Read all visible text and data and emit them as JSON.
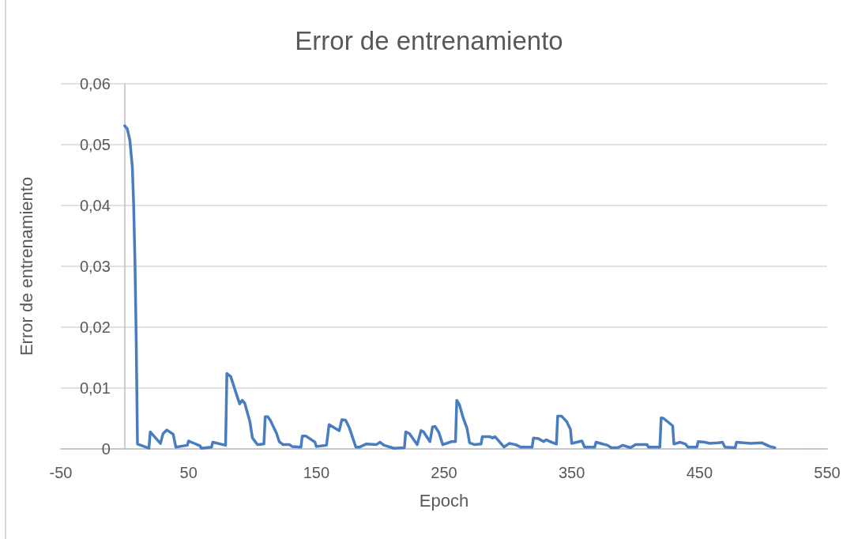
{
  "chart_data": {
    "type": "line",
    "title": "Error de entrenamiento",
    "xlabel": "Epoch",
    "ylabel": "Error de entrenamiento",
    "x": [
      0,
      2,
      4,
      6,
      7,
      8,
      9,
      10,
      19,
      20,
      28,
      30,
      33,
      38,
      40,
      49,
      50,
      59,
      60,
      68,
      69,
      79,
      80,
      83,
      87,
      90,
      92,
      94,
      98,
      100,
      104,
      109,
      110,
      112,
      114,
      119,
      121,
      124,
      129,
      131,
      138,
      139,
      142,
      149,
      150,
      158,
      160,
      168,
      170,
      173,
      176,
      181,
      184,
      189,
      197,
      200,
      203,
      211,
      219,
      220,
      223,
      229,
      232,
      234,
      239,
      241,
      243,
      246,
      249,
      256,
      259,
      260,
      262,
      265,
      268,
      270,
      274,
      279,
      280,
      286,
      288,
      290,
      297,
      301,
      306,
      310,
      319,
      320,
      324,
      328,
      330,
      333,
      338,
      339,
      342,
      346,
      349,
      350,
      358,
      360,
      368,
      369,
      378,
      381,
      386,
      390,
      396,
      400,
      409,
      410,
      419,
      420,
      422,
      429,
      430,
      435,
      439,
      441,
      448,
      449,
      454,
      458,
      465,
      468,
      470,
      478,
      479,
      490,
      499,
      505,
      509
    ],
    "values": [
      0.0531,
      0.0526,
      0.0508,
      0.0463,
      0.0402,
      0.0312,
      0.0182,
      0.0008,
      0.0001,
      0.0028,
      0.0009,
      0.0025,
      0.0031,
      0.0024,
      0.0003,
      0.0006,
      0.0013,
      0.0005,
      0.0001,
      0.0003,
      0.0011,
      0.0006,
      0.0124,
      0.0119,
      0.0093,
      0.0074,
      0.008,
      0.0075,
      0.0045,
      0.0018,
      0.0007,
      0.0008,
      0.0053,
      0.0053,
      0.0047,
      0.0025,
      0.0012,
      0.0007,
      0.0007,
      0.0004,
      0.0003,
      0.0021,
      0.0021,
      0.0011,
      0.0004,
      0.0006,
      0.004,
      0.003,
      0.0048,
      0.0047,
      0.0034,
      0.0003,
      0.0003,
      0.0008,
      0.0007,
      0.0011,
      0.0006,
      0.0001,
      0.0002,
      0.0028,
      0.0025,
      0.0007,
      0.003,
      0.0028,
      0.0012,
      0.0036,
      0.0037,
      0.0027,
      0.0007,
      0.0012,
      0.0012,
      0.008,
      0.0073,
      0.0051,
      0.0034,
      0.001,
      0.0007,
      0.0008,
      0.002,
      0.002,
      0.0018,
      0.002,
      0.0003,
      0.0009,
      0.0007,
      0.0003,
      0.0003,
      0.0018,
      0.0017,
      0.0012,
      0.0015,
      0.0012,
      0.0008,
      0.0054,
      0.0054,
      0.0045,
      0.0032,
      0.0009,
      0.0013,
      0.0003,
      0.0003,
      0.0011,
      0.0006,
      0.0002,
      0.0002,
      0.0006,
      0.0002,
      0.0007,
      0.0007,
      0.0003,
      0.0003,
      0.0051,
      0.005,
      0.0038,
      0.0008,
      0.0011,
      0.0008,
      0.0003,
      0.0003,
      0.0012,
      0.0011,
      0.0009,
      0.001,
      0.0011,
      0.0003,
      0.0002,
      0.0011,
      0.0009,
      0.001,
      0.0004,
      0.0002
    ],
    "color": "#4a7dbf",
    "xlim": [
      -50,
      550
    ],
    "xticks": [
      -50,
      50,
      150,
      250,
      350,
      450,
      550
    ],
    "ylim": [
      0,
      0.06
    ],
    "yticks": [
      0,
      {
        "value": 0.01,
        "label": "0,01"
      },
      {
        "value": 0.02,
        "label": "0,02"
      },
      {
        "value": 0.03,
        "label": "0,03"
      },
      {
        "value": 0.04,
        "label": "0,04"
      },
      {
        "value": 0.05,
        "label": "0,05"
      },
      {
        "value": 0.06,
        "label": "0,06"
      }
    ],
    "grid": "y",
    "marker": "none",
    "line_style": "solid"
  }
}
